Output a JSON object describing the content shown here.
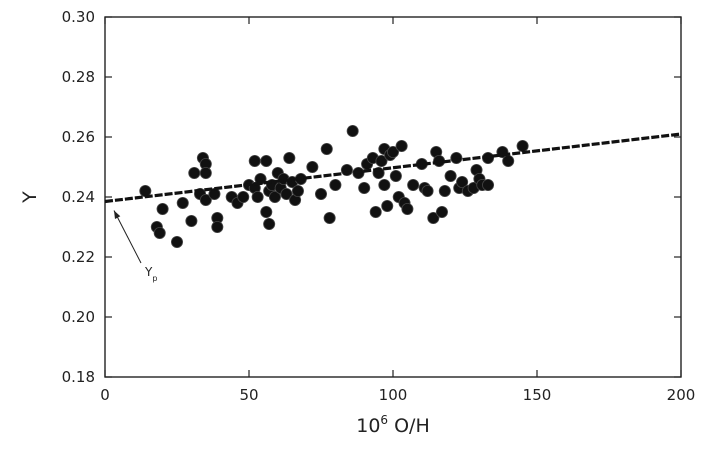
{
  "chart_data": {
    "type": "scatter",
    "title": "",
    "xlabel": "10⁶ O/H",
    "xlabel_base": "10",
    "xlabel_exponent": "6",
    "xlabel_rest": " O/H",
    "ylabel": "Y",
    "xlim": [
      0,
      200
    ],
    "ylim": [
      0.18,
      0.3
    ],
    "x_ticks": [
      0,
      50,
      100,
      150,
      200
    ],
    "x_tick_labels": [
      "0",
      "50",
      "100",
      "150",
      "200"
    ],
    "y_ticks": [
      0.18,
      0.2,
      0.22,
      0.24,
      0.26,
      0.28,
      0.3
    ],
    "y_tick_labels": [
      "0.18",
      "0.20",
      "0.22",
      "0.24",
      "0.26",
      "0.28",
      "0.30"
    ],
    "grid": false,
    "points": [
      {
        "x": 14,
        "y": 0.242
      },
      {
        "x": 18,
        "y": 0.23
      },
      {
        "x": 19,
        "y": 0.228
      },
      {
        "x": 20,
        "y": 0.236
      },
      {
        "x": 25,
        "y": 0.225
      },
      {
        "x": 27,
        "y": 0.238
      },
      {
        "x": 30,
        "y": 0.232
      },
      {
        "x": 31,
        "y": 0.248
      },
      {
        "x": 33,
        "y": 0.241
      },
      {
        "x": 34,
        "y": 0.253
      },
      {
        "x": 35,
        "y": 0.251
      },
      {
        "x": 35,
        "y": 0.239
      },
      {
        "x": 35,
        "y": 0.248
      },
      {
        "x": 38,
        "y": 0.241
      },
      {
        "x": 39,
        "y": 0.233
      },
      {
        "x": 39,
        "y": 0.23
      },
      {
        "x": 44,
        "y": 0.24
      },
      {
        "x": 46,
        "y": 0.238
      },
      {
        "x": 48,
        "y": 0.24
      },
      {
        "x": 50,
        "y": 0.244
      },
      {
        "x": 52,
        "y": 0.243
      },
      {
        "x": 52,
        "y": 0.252
      },
      {
        "x": 53,
        "y": 0.24
      },
      {
        "x": 54,
        "y": 0.246
      },
      {
        "x": 56,
        "y": 0.252
      },
      {
        "x": 56,
        "y": 0.235
      },
      {
        "x": 57,
        "y": 0.231
      },
      {
        "x": 57,
        "y": 0.242
      },
      {
        "x": 58,
        "y": 0.244
      },
      {
        "x": 59,
        "y": 0.24
      },
      {
        "x": 60,
        "y": 0.248
      },
      {
        "x": 61,
        "y": 0.243
      },
      {
        "x": 62,
        "y": 0.246
      },
      {
        "x": 63,
        "y": 0.241
      },
      {
        "x": 64,
        "y": 0.253
      },
      {
        "x": 65,
        "y": 0.245
      },
      {
        "x": 66,
        "y": 0.239
      },
      {
        "x": 67,
        "y": 0.242
      },
      {
        "x": 68,
        "y": 0.246
      },
      {
        "x": 72,
        "y": 0.25
      },
      {
        "x": 75,
        "y": 0.241
      },
      {
        "x": 77,
        "y": 0.256
      },
      {
        "x": 78,
        "y": 0.233
      },
      {
        "x": 80,
        "y": 0.244
      },
      {
        "x": 84,
        "y": 0.249
      },
      {
        "x": 86,
        "y": 0.262
      },
      {
        "x": 88,
        "y": 0.248
      },
      {
        "x": 90,
        "y": 0.243
      },
      {
        "x": 91,
        "y": 0.251
      },
      {
        "x": 93,
        "y": 0.253
      },
      {
        "x": 94,
        "y": 0.235
      },
      {
        "x": 95,
        "y": 0.248
      },
      {
        "x": 96,
        "y": 0.252
      },
      {
        "x": 97,
        "y": 0.256
      },
      {
        "x": 97,
        "y": 0.244
      },
      {
        "x": 98,
        "y": 0.237
      },
      {
        "x": 99,
        "y": 0.254
      },
      {
        "x": 100,
        "y": 0.255
      },
      {
        "x": 101,
        "y": 0.247
      },
      {
        "x": 102,
        "y": 0.24
      },
      {
        "x": 103,
        "y": 0.257
      },
      {
        "x": 104,
        "y": 0.238
      },
      {
        "x": 105,
        "y": 0.236
      },
      {
        "x": 107,
        "y": 0.244
      },
      {
        "x": 110,
        "y": 0.251
      },
      {
        "x": 111,
        "y": 0.243
      },
      {
        "x": 112,
        "y": 0.242
      },
      {
        "x": 114,
        "y": 0.233
      },
      {
        "x": 115,
        "y": 0.255
      },
      {
        "x": 116,
        "y": 0.252
      },
      {
        "x": 117,
        "y": 0.235
      },
      {
        "x": 118,
        "y": 0.242
      },
      {
        "x": 120,
        "y": 0.247
      },
      {
        "x": 122,
        "y": 0.253
      },
      {
        "x": 123,
        "y": 0.243
      },
      {
        "x": 124,
        "y": 0.245
      },
      {
        "x": 126,
        "y": 0.242
      },
      {
        "x": 128,
        "y": 0.243
      },
      {
        "x": 129,
        "y": 0.249
      },
      {
        "x": 130,
        "y": 0.246
      },
      {
        "x": 131,
        "y": 0.244
      },
      {
        "x": 133,
        "y": 0.244
      },
      {
        "x": 133,
        "y": 0.253
      },
      {
        "x": 138,
        "y": 0.255
      },
      {
        "x": 140,
        "y": 0.252
      },
      {
        "x": 145,
        "y": 0.257
      }
    ],
    "fit_line": {
      "x": [
        0,
        200
      ],
      "y": [
        0.2385,
        0.261
      ],
      "style": "dashed"
    },
    "annotation": {
      "text": "Y",
      "subscript": "p",
      "points_to": {
        "x": 0,
        "y": 0.2385
      }
    }
  }
}
